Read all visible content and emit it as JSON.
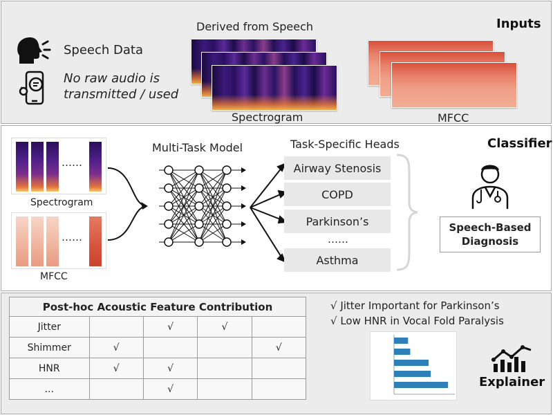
{
  "inputs": {
    "title": "Inputs",
    "speech_label": "Speech Data",
    "no_audio_line1": "No raw audio is",
    "no_audio_line2": "transmitted / used",
    "derived_label": "Derived from Speech",
    "spectrogram_label": "Spectrogram",
    "mfcc_label": "MFCC"
  },
  "classifier": {
    "title": "Classifier",
    "spectrogram_label": "Spectrogram",
    "mfcc_label": "MFCC",
    "ellipsis": "……",
    "model_label": "Multi-Task Model",
    "heads_label": "Task-Specific Heads",
    "heads": [
      "Airway Stenosis",
      "COPD",
      "Parkinson’s",
      "Asthma"
    ],
    "heads_ellipsis": "……",
    "diagnosis_line1": "Speech-Based",
    "diagnosis_line2": "Diagnosis"
  },
  "explainer": {
    "title": "Explainer",
    "table_title": "Post-hoc Acoustic Feature Contribution",
    "rows": [
      {
        "label": "Jitter",
        "cells": [
          "",
          "√",
          "√",
          ""
        ]
      },
      {
        "label": "Shimmer",
        "cells": [
          "√",
          "",
          "",
          "√"
        ]
      },
      {
        "label": "HNR",
        "cells": [
          "√",
          "√",
          "",
          ""
        ]
      },
      {
        "label": "...",
        "cells": [
          "",
          "√",
          "",
          ""
        ]
      }
    ],
    "note1": "√ Jitter Important for Parkinson’s",
    "note2": "√ Low HNR in Vocal Fold Paralysis",
    "shap_bars": [
      0.13,
      0.15,
      0.32,
      0.34,
      0.5
    ],
    "bar_color": "#2f7fb8"
  },
  "colors": {
    "panel_gray": "#ececec",
    "border": "#a8a8a8"
  }
}
